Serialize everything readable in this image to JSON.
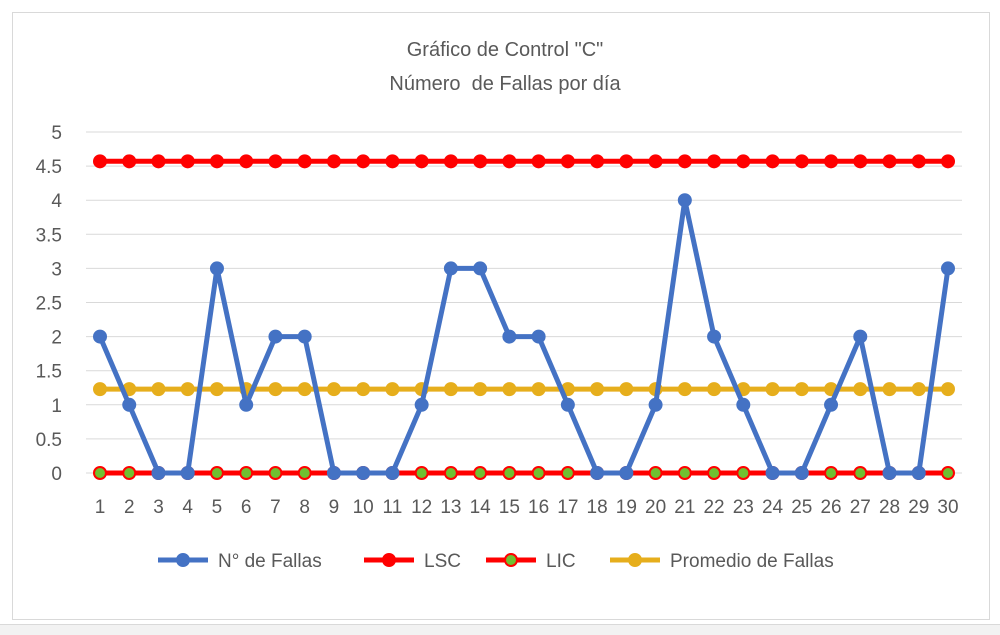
{
  "chart_data": {
    "type": "line",
    "title": "Gráfico de Control \"C\"",
    "subtitle": "Número  de Fallas por día",
    "xlabel": "",
    "ylabel": "",
    "ylim": [
      0,
      5
    ],
    "y_ticks": [
      "0",
      "0.5",
      "1",
      "1.5",
      "2",
      "2.5",
      "3",
      "3.5",
      "4",
      "4.5",
      "5"
    ],
    "grid": true,
    "legend_position": "bottom",
    "categories": [
      "1",
      "2",
      "3",
      "4",
      "5",
      "6",
      "7",
      "8",
      "9",
      "10",
      "11",
      "12",
      "13",
      "14",
      "15",
      "16",
      "17",
      "18",
      "19",
      "20",
      "21",
      "22",
      "23",
      "24",
      "25",
      "26",
      "27",
      "28",
      "29",
      "30"
    ],
    "series": [
      {
        "name": "N° de Fallas",
        "color": "#4472c4",
        "marker_fill": "#4472c4",
        "values": [
          2,
          1,
          0,
          0,
          3,
          1,
          2,
          2,
          0,
          0,
          0,
          1,
          3,
          3,
          2,
          2,
          1,
          0,
          0,
          1,
          4,
          2,
          1,
          0,
          0,
          1,
          2,
          0,
          0,
          3
        ]
      },
      {
        "name": "LSC",
        "color": "#ff0000",
        "marker_fill": "#ff0000",
        "values": [
          4.57,
          4.57,
          4.57,
          4.57,
          4.57,
          4.57,
          4.57,
          4.57,
          4.57,
          4.57,
          4.57,
          4.57,
          4.57,
          4.57,
          4.57,
          4.57,
          4.57,
          4.57,
          4.57,
          4.57,
          4.57,
          4.57,
          4.57,
          4.57,
          4.57,
          4.57,
          4.57,
          4.57,
          4.57,
          4.57
        ]
      },
      {
        "name": "LIC",
        "color": "#ff0000",
        "marker_fill": "#70c030",
        "values": [
          0,
          0,
          0,
          0,
          0,
          0,
          0,
          0,
          0,
          0,
          0,
          0,
          0,
          0,
          0,
          0,
          0,
          0,
          0,
          0,
          0,
          0,
          0,
          0,
          0,
          0,
          0,
          0,
          0,
          0
        ]
      },
      {
        "name": "Promedio de Fallas",
        "color": "#e6ae1c",
        "marker_fill": "#e6ae1c",
        "values": [
          1.23,
          1.23,
          1.23,
          1.23,
          1.23,
          1.23,
          1.23,
          1.23,
          1.23,
          1.23,
          1.23,
          1.23,
          1.23,
          1.23,
          1.23,
          1.23,
          1.23,
          1.23,
          1.23,
          1.23,
          1.23,
          1.23,
          1.23,
          1.23,
          1.23,
          1.23,
          1.23,
          1.23,
          1.23,
          1.23
        ]
      }
    ]
  }
}
